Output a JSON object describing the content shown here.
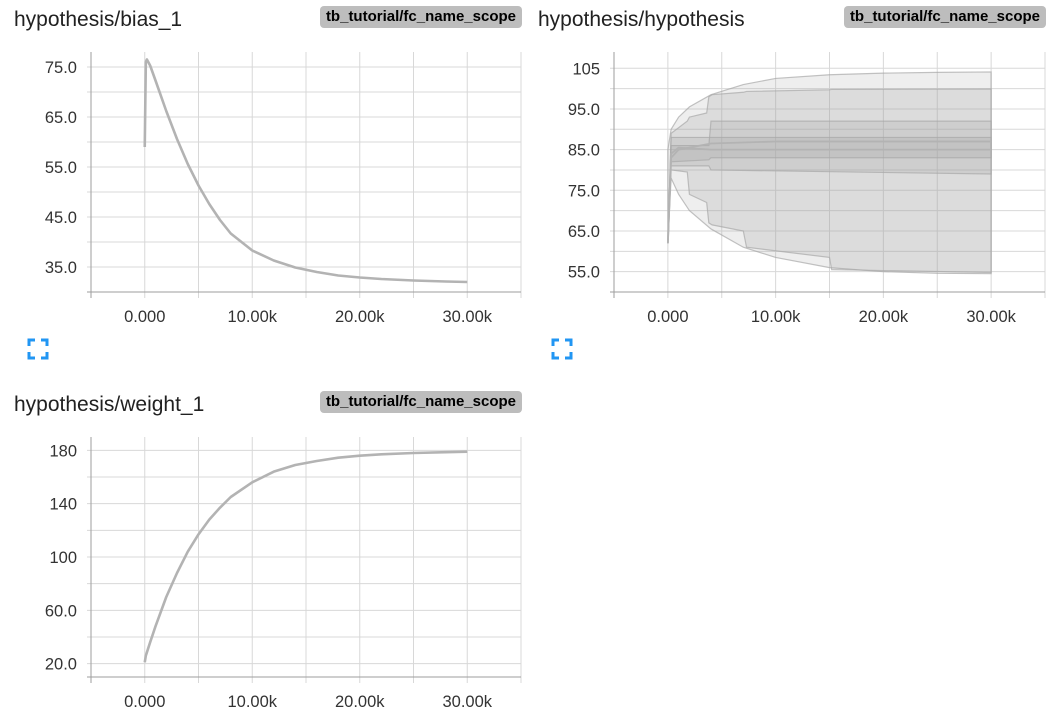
{
  "cards": [
    {
      "title": "hypothesis/bias_1",
      "tag": "tb_tutorial/fc_name_scope",
      "chart_data": {
        "type": "line",
        "title": "hypothesis/bias_1",
        "xlabel": "",
        "ylabel": "",
        "xlim": [
          -5000,
          35000
        ],
        "ylim": [
          30,
          78
        ],
        "xticks": [
          0,
          10000,
          20000,
          30000
        ],
        "xtick_labels": [
          "0.000",
          "10.00k",
          "20.00k",
          "30.00k"
        ],
        "yticks": [
          35,
          45,
          55,
          65,
          75
        ],
        "ytick_labels": [
          "35.0",
          "45.0",
          "55.0",
          "65.0",
          "75.0"
        ],
        "grid": true,
        "series": [
          {
            "x": [
              0,
              100,
              200,
              500,
              1000,
              2000,
              3000,
              4000,
              5000,
              6000,
              7000,
              8000,
              10000,
              12000,
              14000,
              16000,
              18000,
              20000,
              22000,
              25000,
              28000,
              30000
            ],
            "values": [
              59,
              76,
              76.5,
              75.3,
              72.3,
              66.2,
              60.6,
              55.6,
              51.3,
              47.6,
              44.4,
              41.7,
              38.3,
              36.3,
              34.9,
              34.0,
              33.3,
              32.9,
              32.6,
              32.3,
              32.1,
              32.0
            ]
          }
        ]
      }
    },
    {
      "title": "hypothesis/hypothesis",
      "tag": "tb_tutorial/fc_name_scope",
      "chart_data": {
        "type": "area",
        "title": "hypothesis/hypothesis",
        "xlabel": "",
        "ylabel": "",
        "xlim": [
          -5000,
          35000
        ],
        "ylim": [
          50,
          109
        ],
        "xticks": [
          0,
          10000,
          20000,
          30000
        ],
        "xtick_labels": [
          "0.000",
          "10.00k",
          "20.00k",
          "30.00k"
        ],
        "yticks": [
          55,
          65,
          75,
          85,
          95,
          105
        ],
        "ytick_labels": [
          "55.0",
          "65.0",
          "75.0",
          "85.0",
          "95.0",
          "105"
        ],
        "grid": true,
        "bands": [
          {
            "x": [
              0,
              300,
              1000,
              2000,
              4000,
              7000,
              10000,
              15000,
              20000,
              25000,
              30000
            ],
            "upper": [
              85,
              90,
              93,
              95.5,
              98.5,
              101,
              102.5,
              103.4,
              103.8,
              104,
              104.1
            ],
            "lower": [
              62,
              78,
              74,
              70,
              65.5,
              61,
              58.5,
              56,
              55,
              54.6,
              54.5
            ]
          },
          {
            "x": [
              0,
              300,
              1800,
              2000,
              3600,
              3800,
              4100,
              7000,
              7300,
              15000,
              15200,
              30000
            ],
            "upper": [
              62,
              89,
              92,
              93,
              94,
              98,
              98.5,
              99.1,
              99.3,
              99.7,
              99.8,
              99.9
            ],
            "lower": [
              62,
              80,
              79.5,
              74,
              72,
              67,
              66.5,
              65,
              61,
              58.5,
              55.5,
              54.8
            ]
          },
          {
            "x": [
              0,
              300,
              3800,
              4000,
              30000
            ],
            "upper": [
              62,
              86,
              86,
              92,
              92
            ],
            "lower": [
              62,
              81,
              81,
              80,
              79
            ]
          },
          {
            "x": [
              0,
              300,
              3800,
              4000,
              30000
            ],
            "upper": [
              62,
              88,
              88,
              88,
              88
            ],
            "lower": [
              62,
              82,
              82.5,
              83,
              83
            ]
          }
        ],
        "series": [
          {
            "name": "",
            "x": [
              0,
              300,
              1000,
              4000,
              10000,
              30000
            ],
            "values": [
              62,
              83,
              85,
              86.5,
              87,
              87
            ]
          },
          {
            "name": "",
            "x": [
              0,
              300,
              1000,
              4000,
              10000,
              30000
            ],
            "values": [
              62,
              84,
              85.5,
              85,
              85,
              85
            ]
          }
        ]
      }
    },
    {
      "title": "hypothesis/weight_1",
      "tag": "tb_tutorial/fc_name_scope",
      "chart_data": {
        "type": "line",
        "title": "hypothesis/weight_1",
        "xlabel": "",
        "ylabel": "",
        "xlim": [
          -5000,
          35000
        ],
        "ylim": [
          10,
          190
        ],
        "xticks": [
          0,
          10000,
          20000,
          30000
        ],
        "xtick_labels": [
          "0.000",
          "10.00k",
          "20.00k",
          "30.00k"
        ],
        "yticks": [
          20,
          60,
          100,
          140,
          180
        ],
        "ytick_labels": [
          "20.0",
          "60.0",
          "100",
          "140",
          "180"
        ],
        "grid": true,
        "series": [
          {
            "x": [
              0,
              100,
              500,
              1000,
              2000,
              3000,
              4000,
              5000,
              6000,
              7000,
              8000,
              10000,
              12000,
              14000,
              16000,
              18000,
              20000,
              22000,
              25000,
              28000,
              30000
            ],
            "values": [
              21,
              26,
              36,
              48,
              70,
              88,
              104,
              117,
              128,
              137,
              145,
              156,
              164,
              169,
              172,
              174.5,
              176,
              177,
              178,
              178.6,
              179
            ]
          }
        ]
      }
    }
  ],
  "icons": {
    "expand": "fullscreen-expand-icon"
  },
  "colors": {
    "line": "#b3b3b3",
    "grid": "#d8d8d8",
    "tag_bg": "#bdbdbd",
    "expand_icon": "#2196f3"
  }
}
